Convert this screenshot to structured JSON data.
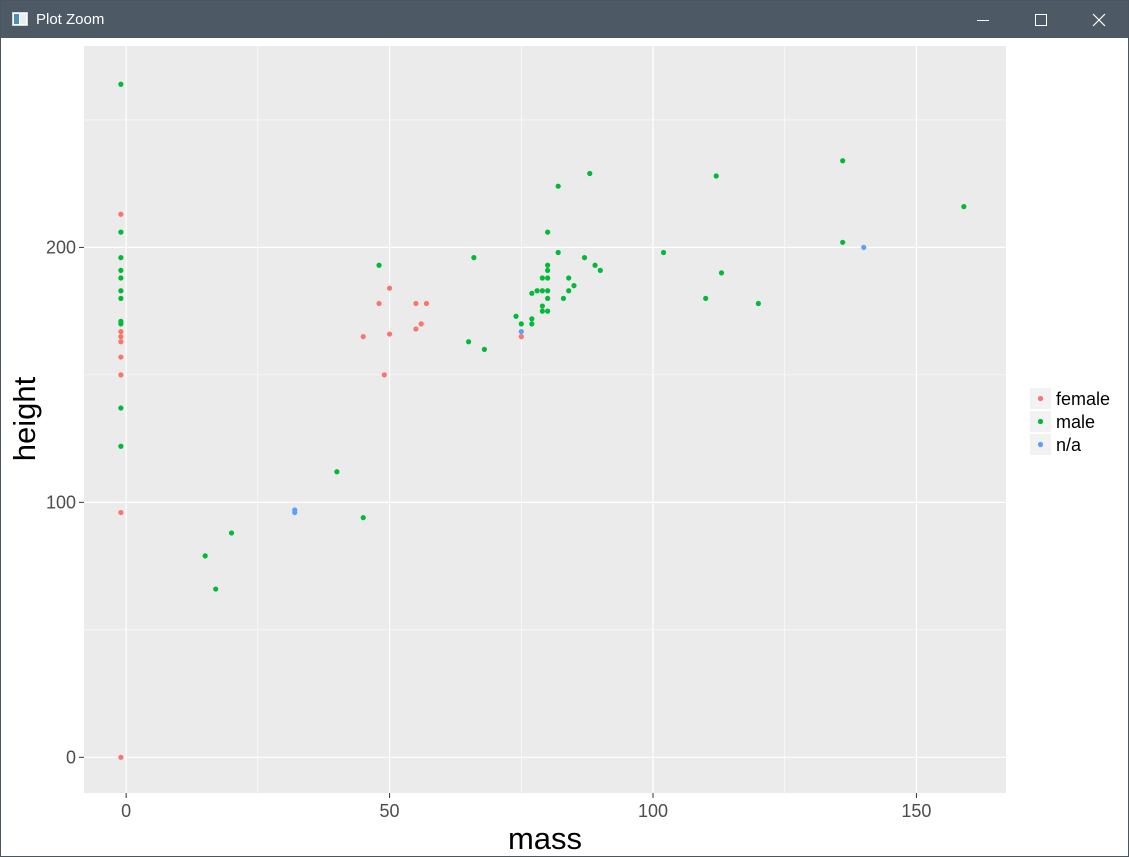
{
  "window": {
    "title": "Plot Zoom",
    "icon": "plot-zoom-app-icon",
    "buttons": {
      "minimize_icon": "minimize-icon",
      "maximize_icon": "maximize-icon",
      "close_icon": "close-icon"
    },
    "titlebar_color": "#4d5a66"
  },
  "chart_data": {
    "type": "scatter",
    "xlabel": "mass",
    "ylabel": "height",
    "xlim": [
      -8,
      167
    ],
    "ylim": [
      -14,
      279
    ],
    "xticks": [
      0,
      50,
      100,
      150
    ],
    "xtick_labels": [
      "0",
      "50",
      "100",
      "150"
    ],
    "yticks": [
      0,
      100,
      200
    ],
    "ytick_labels": [
      "0",
      "100",
      "200"
    ],
    "panel_background": "#ebebeb",
    "grid": true,
    "legend": {
      "position": "right",
      "title": ""
    },
    "series": [
      {
        "name": "female",
        "color": "#f8766d",
        "points": [
          [
            -1,
            0
          ],
          [
            -1,
            96
          ],
          [
            -1,
            150
          ],
          [
            -1,
            157
          ],
          [
            -1,
            163
          ],
          [
            -1,
            165
          ],
          [
            -1,
            167
          ],
          [
            -1,
            213
          ],
          [
            45,
            165
          ],
          [
            48,
            178
          ],
          [
            49,
            150
          ],
          [
            50,
            166
          ],
          [
            50,
            184
          ],
          [
            55,
            168
          ],
          [
            55,
            178
          ],
          [
            56,
            170
          ],
          [
            57,
            178
          ],
          [
            75,
            165
          ]
        ]
      },
      {
        "name": "male",
        "color": "#00ba38",
        "points": [
          [
            -1,
            122
          ],
          [
            -1,
            137
          ],
          [
            -1,
            170
          ],
          [
            -1,
            171
          ],
          [
            -1,
            180
          ],
          [
            -1,
            183
          ],
          [
            -1,
            188
          ],
          [
            -1,
            191
          ],
          [
            -1,
            196
          ],
          [
            -1,
            206
          ],
          [
            -1,
            264
          ],
          [
            15,
            79
          ],
          [
            17,
            66
          ],
          [
            20,
            88
          ],
          [
            40,
            112
          ],
          [
            45,
            94
          ],
          [
            48,
            193
          ],
          [
            65,
            163
          ],
          [
            66,
            196
          ],
          [
            68,
            160
          ],
          [
            74,
            173
          ],
          [
            75,
            170
          ],
          [
            77,
            170
          ],
          [
            77,
            172
          ],
          [
            77,
            182
          ],
          [
            78,
            183
          ],
          [
            79,
            175
          ],
          [
            79,
            177
          ],
          [
            79,
            183
          ],
          [
            79,
            188
          ],
          [
            80,
            175
          ],
          [
            80,
            180
          ],
          [
            80,
            183
          ],
          [
            80,
            188
          ],
          [
            80,
            191
          ],
          [
            80,
            193
          ],
          [
            80,
            206
          ],
          [
            82,
            198
          ],
          [
            82,
            224
          ],
          [
            83,
            180
          ],
          [
            84,
            183
          ],
          [
            84,
            188
          ],
          [
            85,
            185
          ],
          [
            87,
            196
          ],
          [
            88,
            229
          ],
          [
            89,
            193
          ],
          [
            90,
            191
          ],
          [
            102,
            198
          ],
          [
            110,
            180
          ],
          [
            112,
            228
          ],
          [
            113,
            190
          ],
          [
            120,
            178
          ],
          [
            136,
            202
          ],
          [
            136,
            234
          ],
          [
            159,
            216
          ]
        ]
      },
      {
        "name": "n/a",
        "color": "#619cff",
        "points": [
          [
            32,
            96
          ],
          [
            32,
            97
          ],
          [
            75,
            167
          ],
          [
            140,
            200
          ]
        ]
      }
    ]
  }
}
